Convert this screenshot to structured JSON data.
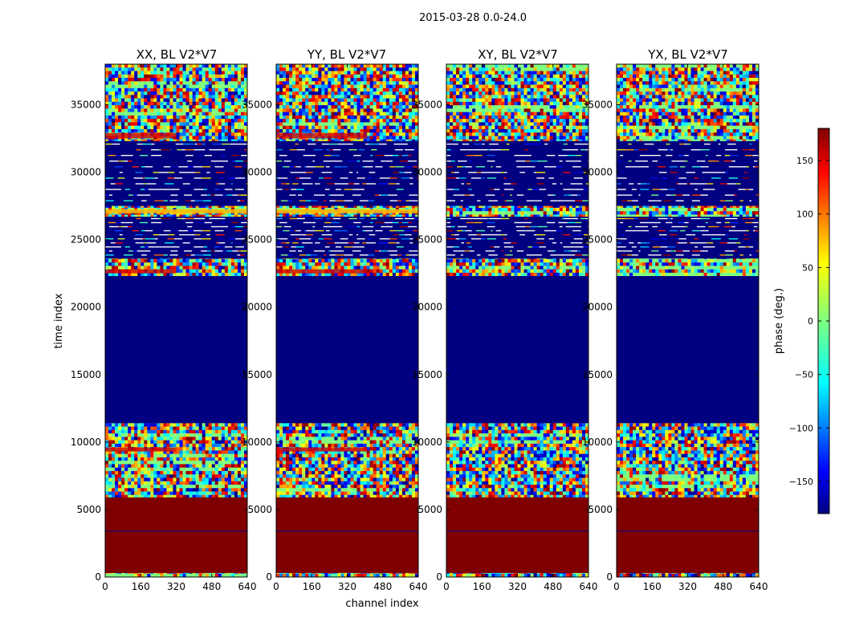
{
  "chart_data": {
    "type": "heatmap",
    "suptitle": "2015-03-28 0.0-24.0",
    "xlabel": "channel index",
    "ylabel": "time index",
    "xlim": [
      0,
      640
    ],
    "ylim": [
      0,
      38000
    ],
    "x_ticks": [
      0,
      160,
      320,
      480,
      640
    ],
    "y_ticks": [
      0,
      5000,
      10000,
      15000,
      20000,
      25000,
      30000,
      35000
    ],
    "panels": [
      {
        "title": "XX, BL V2*V7",
        "variant": "xx"
      },
      {
        "title": "YY, BL V2*V7",
        "variant": "yy"
      },
      {
        "title": "XY, BL V2*V7",
        "variant": "cross"
      },
      {
        "title": "YX, BL V2*V7",
        "variant": "cross"
      }
    ],
    "time_segments": [
      {
        "from": 0,
        "to": 300,
        "kind": "noise"
      },
      {
        "from": 300,
        "to": 5900,
        "phase": 180
      },
      {
        "from": 5900,
        "to": 11400,
        "kind": "noise"
      },
      {
        "from": 11400,
        "to": 22300,
        "phase": -180
      },
      {
        "from": 22300,
        "to": 23600,
        "kind": "noise"
      },
      {
        "from": 23600,
        "to": 26700,
        "phase": -180,
        "kind": "dense-flags"
      },
      {
        "from": 26700,
        "to": 27500,
        "kind": "noise",
        "xx_yy_phase": 70
      },
      {
        "from": 27500,
        "to": 32300,
        "phase": -180,
        "kind": "sparse-flags"
      },
      {
        "from": 32300,
        "to": 38000,
        "kind": "noise"
      }
    ],
    "colorbar": {
      "label": "phase (deg.)",
      "colormap": "jet",
      "range": [
        -180,
        180
      ],
      "ticks": [
        -150,
        -100,
        -50,
        0,
        50,
        100,
        150
      ],
      "tick_labels": [
        "−150",
        "−100",
        "−50",
        "0",
        "50",
        "100",
        "150"
      ]
    }
  },
  "colors": {
    "low": "#00007f",
    "high": "#7f0000",
    "frame": "#000000"
  }
}
